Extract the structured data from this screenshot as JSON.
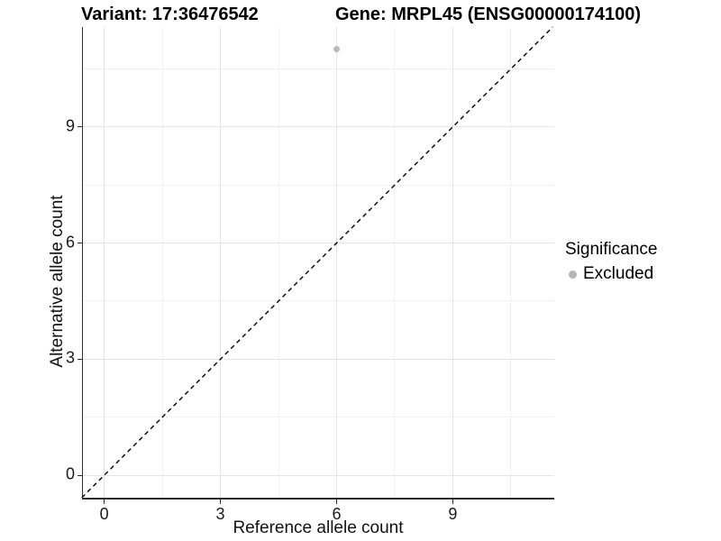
{
  "titles": {
    "variant": "Variant: 17:36476542",
    "gene": "Gene: MRPL45 (ENSG00000174100)"
  },
  "chart_data": {
    "type": "scatter",
    "title_left": "Variant: 17:36476542",
    "title_right": "Gene: MRPL45 (ENSG00000174100)",
    "xlabel": "Reference allele count",
    "ylabel": "Alternative allele count",
    "xlim": [
      -0.55,
      11.62
    ],
    "ylim": [
      -0.58,
      11.58
    ],
    "x_major_ticks": [
      0,
      3,
      6,
      9
    ],
    "y_major_ticks": [
      0,
      3,
      6,
      9
    ],
    "x_minor_ticks": [
      1.5,
      4.5,
      7.5,
      10.5
    ],
    "y_minor_ticks": [
      1.5,
      4.5,
      7.5,
      10.5
    ],
    "grid": "major-and-minor",
    "panel_background": "#ffffff",
    "grid_major_color": "#e4e4e4",
    "grid_minor_color": "#f1f1f1",
    "axis_line_color": "#2b2b2b",
    "points": [
      {
        "x": 6,
        "y": 11,
        "series": "Excluded",
        "color": "#b9b9b9"
      }
    ],
    "reference_line": {
      "kind": "identity y=x",
      "from": {
        "x": -0.58,
        "y": -0.58
      },
      "to": {
        "x": 11.58,
        "y": 11.58
      },
      "style": "dashed",
      "color": "#000000"
    },
    "legend": {
      "title": "Significance",
      "position": "right",
      "items": [
        {
          "label": "Excluded",
          "color": "#b6b6b6"
        }
      ]
    }
  }
}
